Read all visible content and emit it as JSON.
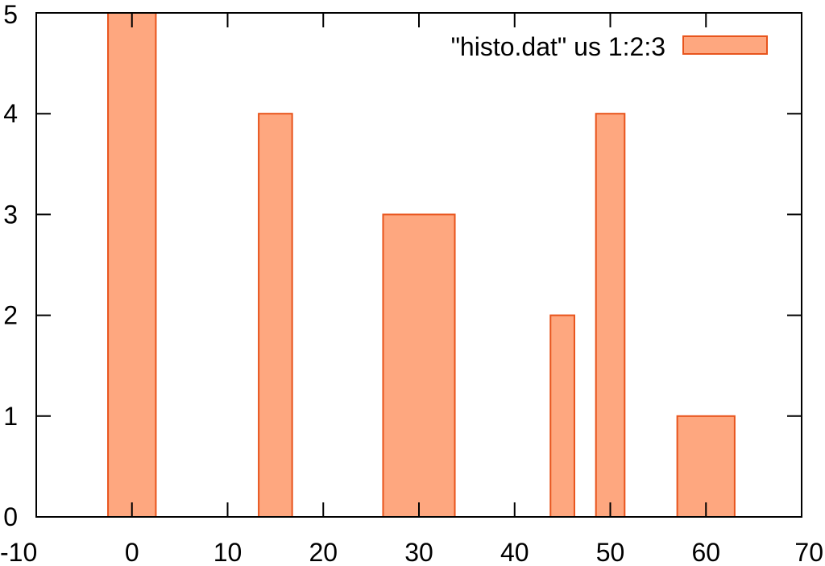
{
  "chart_data": {
    "type": "bar",
    "bar_style": "boxes",
    "series": [
      {
        "name": "\"histo.dat\" us 1:2:3",
        "points": [
          {
            "x": 0,
            "y": 5,
            "width": 5
          },
          {
            "x": 15,
            "y": 4,
            "width": 3.5
          },
          {
            "x": 30,
            "y": 3,
            "width": 7.5
          },
          {
            "x": 45,
            "y": 2,
            "width": 2.5
          },
          {
            "x": 50,
            "y": 4,
            "width": 3
          },
          {
            "x": 60,
            "y": 1,
            "width": 6
          }
        ]
      }
    ],
    "xlim": [
      -10,
      70
    ],
    "ylim": [
      0,
      5
    ],
    "x_ticks": [
      "-10",
      "0",
      "10",
      "20",
      "30",
      "40",
      "50",
      "60",
      "70"
    ],
    "y_ticks": [
      "0",
      "1",
      "2",
      "3",
      "4",
      "5"
    ],
    "title": "",
    "xlabel": "",
    "ylabel": "",
    "grid": false,
    "legend_position": "top-right",
    "colors": {
      "fill": "#fea77f",
      "stroke": "#e8541c",
      "axis": "#000000"
    }
  }
}
